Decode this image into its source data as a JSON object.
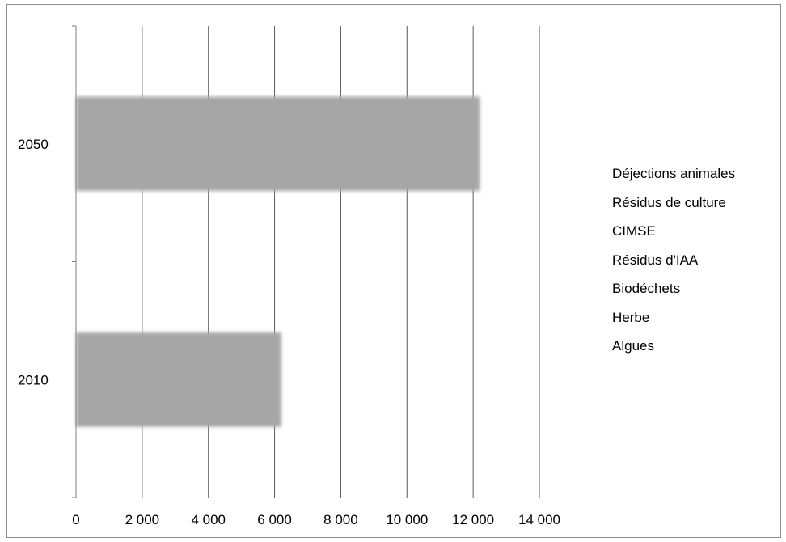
{
  "chart_data": {
    "type": "bar",
    "orientation": "horizontal",
    "stacked": true,
    "categories": [
      "2010",
      "2050"
    ],
    "series": [
      {
        "name": "Déjections animales",
        "values": [
          6200,
          12200
        ]
      }
    ],
    "legend_entries": [
      "Déjections animales",
      "Résidus de culture",
      "CIMSE",
      "Résidus d'IAA",
      "Biodéchets",
      "Herbe",
      "Algues"
    ],
    "x_ticks": [
      "0",
      "2 000",
      "4 000",
      "6 000",
      "8 000",
      "10 000",
      "12 000",
      "14 000"
    ],
    "xlim": [
      0,
      14000
    ],
    "grid": "vertical",
    "legend_position": "right",
    "bar_color": "#a6a6a6",
    "gridline_color": "#595959"
  }
}
